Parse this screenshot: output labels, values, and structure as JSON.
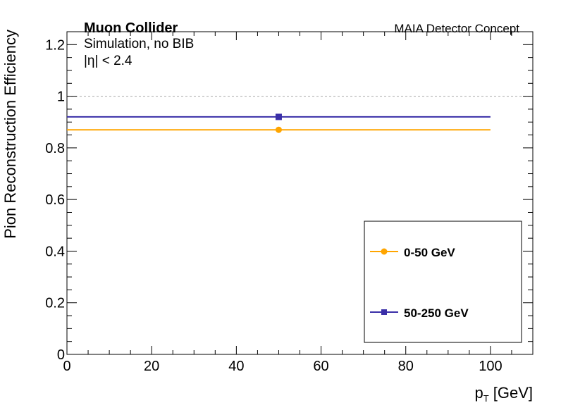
{
  "chart_data": {
    "type": "scatter",
    "labels": {
      "experiment": "Muon Collider",
      "simulation": "Simulation, no BIB",
      "eta_cut": "|η| < 2.4",
      "detector": "MAIA Detector Concept"
    },
    "xlabel": "p",
    "xlabel_sub": "T",
    "xlabel_unit": " [GeV]",
    "ylabel": "Pion Reconstruction Efficiency",
    "xlim": [
      0,
      110
    ],
    "ylim": [
      0,
      1.25
    ],
    "xticks": [
      0,
      20,
      40,
      60,
      80,
      100
    ],
    "yticks": [
      0,
      0.2,
      0.4,
      0.6,
      0.8,
      1,
      1.2
    ],
    "ytick_labels": [
      "0",
      "0.2",
      "0.4",
      "0.6",
      "0.8",
      "1",
      "1.2"
    ],
    "reference_line": {
      "y": 1.0,
      "style": "dashed",
      "color": "#aaaaaa"
    },
    "legend_position": "bottom-right",
    "series": [
      {
        "name": "0-50 GeV",
        "color": "#ffa500",
        "marker": "circle",
        "x": [
          50
        ],
        "y": [
          0.87
        ],
        "xerr_low": [
          50
        ],
        "xerr_high": [
          50
        ]
      },
      {
        "name": "50-250 GeV",
        "color": "#3a2fa8",
        "marker": "square",
        "x": [
          50
        ],
        "y": [
          0.92
        ],
        "xerr_low": [
          50
        ],
        "xerr_high": [
          50
        ]
      }
    ]
  }
}
